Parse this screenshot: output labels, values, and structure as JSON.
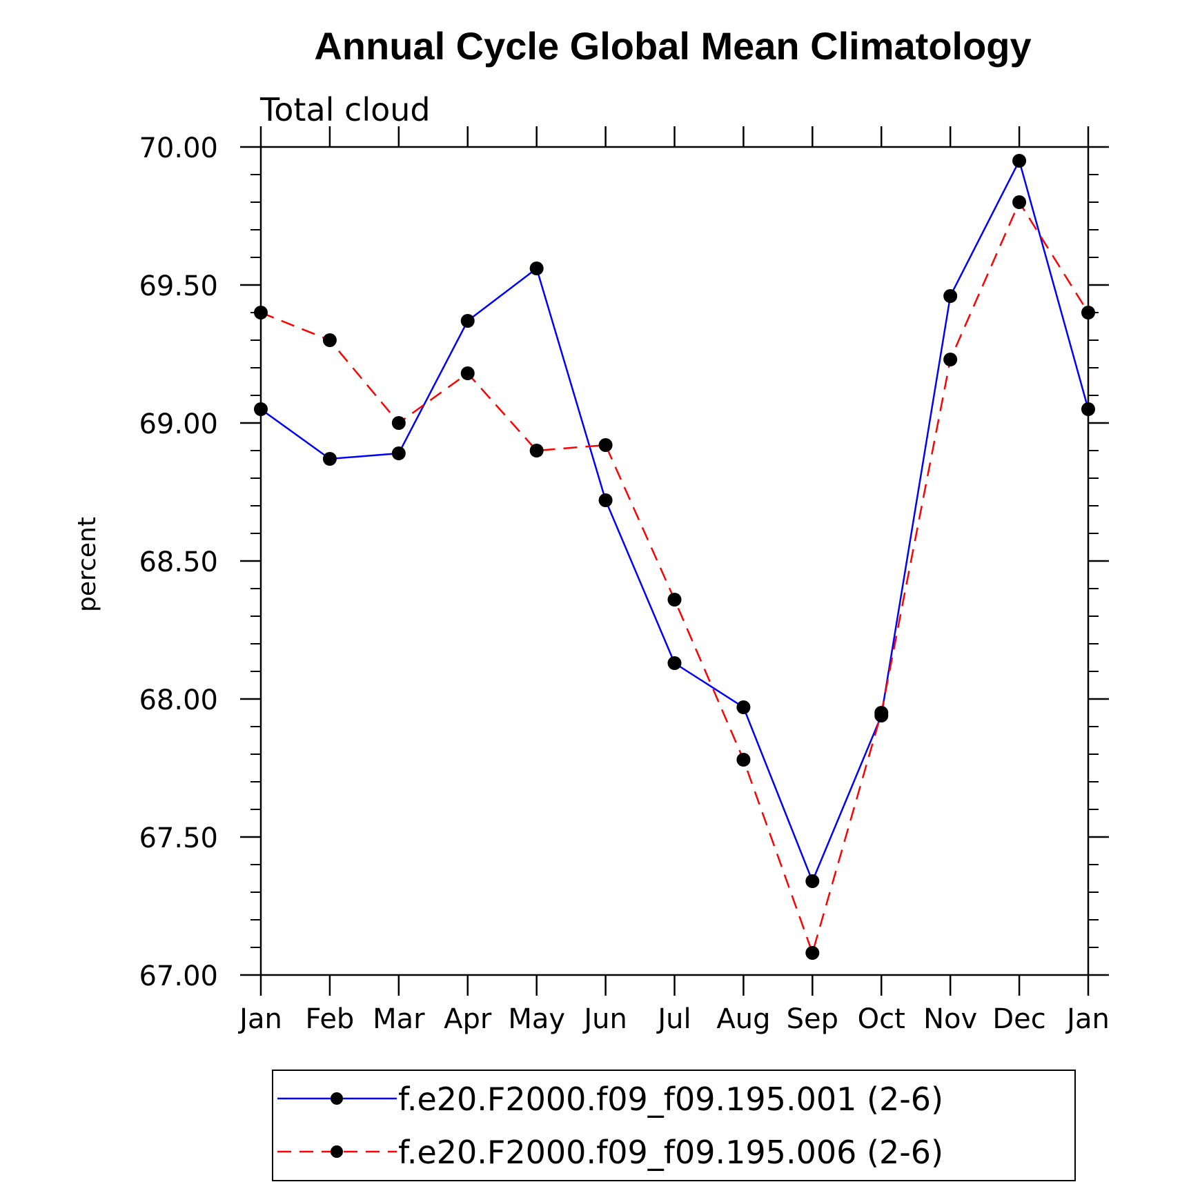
{
  "chart_data": {
    "type": "line",
    "title": "Annual Cycle Global Mean Climatology",
    "subtitle": "Total cloud",
    "ylabel": "percent",
    "xlabel": "",
    "categories": [
      "Jan",
      "Feb",
      "Mar",
      "Apr",
      "May",
      "Jun",
      "Jul",
      "Aug",
      "Sep",
      "Oct",
      "Nov",
      "Dec",
      "Jan"
    ],
    "ylim": [
      67.0,
      70.0
    ],
    "y_ticks": [
      "67.00",
      "67.50",
      "68.00",
      "68.50",
      "69.00",
      "69.50",
      "70.00"
    ],
    "legend_position": "bottom",
    "grid": false,
    "series": [
      {
        "name": "f.e20.F2000.f09_f09.195.001 (2-6)",
        "color": "#0000ff",
        "dash": "solid",
        "values": [
          69.05,
          68.87,
          68.89,
          69.37,
          69.56,
          68.72,
          68.13,
          67.97,
          67.34,
          67.94,
          69.46,
          69.95,
          69.05
        ]
      },
      {
        "name": "f.e20.F2000.f09_f09.195.006 (2-6)",
        "color": "#ff0000",
        "dash": "dashed",
        "values": [
          69.4,
          69.3,
          69.0,
          69.18,
          68.9,
          68.92,
          68.36,
          67.78,
          67.08,
          67.95,
          69.23,
          69.8,
          69.4
        ]
      }
    ]
  }
}
